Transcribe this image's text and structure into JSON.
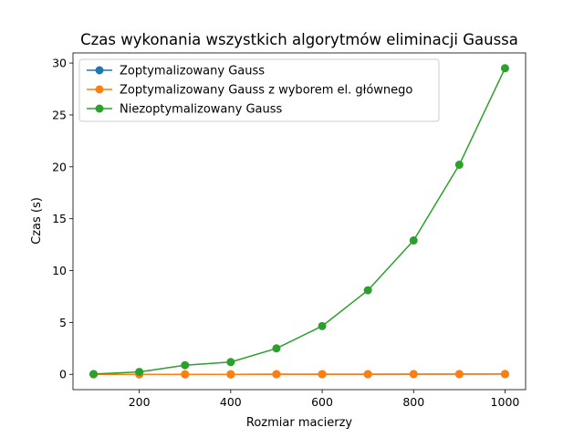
{
  "chart_data": {
    "type": "line",
    "title": "Czas wykonania wszystkich algorytmów eliminacji Gaussa",
    "xlabel": "Rozmiar macierzy",
    "ylabel": "Czas (s)",
    "xlim": [
      55,
      1045
    ],
    "ylim": [
      -1.475,
      30.975
    ],
    "xticks": [
      200,
      400,
      600,
      800,
      1000
    ],
    "yticks": [
      0,
      5,
      10,
      15,
      20,
      25,
      30
    ],
    "grid": false,
    "legend_position": "top-left",
    "x": [
      100,
      200,
      300,
      400,
      500,
      600,
      700,
      800,
      900,
      1000
    ],
    "series": [
      {
        "name": "Zoptymalizowany Gauss",
        "color": "#1f77b4",
        "values": [
          0.0,
          0.0,
          0.0,
          0.0,
          0.01,
          0.01,
          0.01,
          0.02,
          0.02,
          0.03
        ]
      },
      {
        "name": "Zoptymalizowany Gauss z wyborem el. głównego",
        "color": "#ff7f0e",
        "values": [
          0.0,
          0.0,
          0.0,
          0.0,
          0.01,
          0.01,
          0.01,
          0.02,
          0.02,
          0.03
        ]
      },
      {
        "name": "Niezoptymalizowany Gauss",
        "color": "#2ca02c",
        "values": [
          0.03,
          0.23,
          0.88,
          1.18,
          2.5,
          4.65,
          8.1,
          12.9,
          20.2,
          29.5
        ]
      }
    ]
  }
}
